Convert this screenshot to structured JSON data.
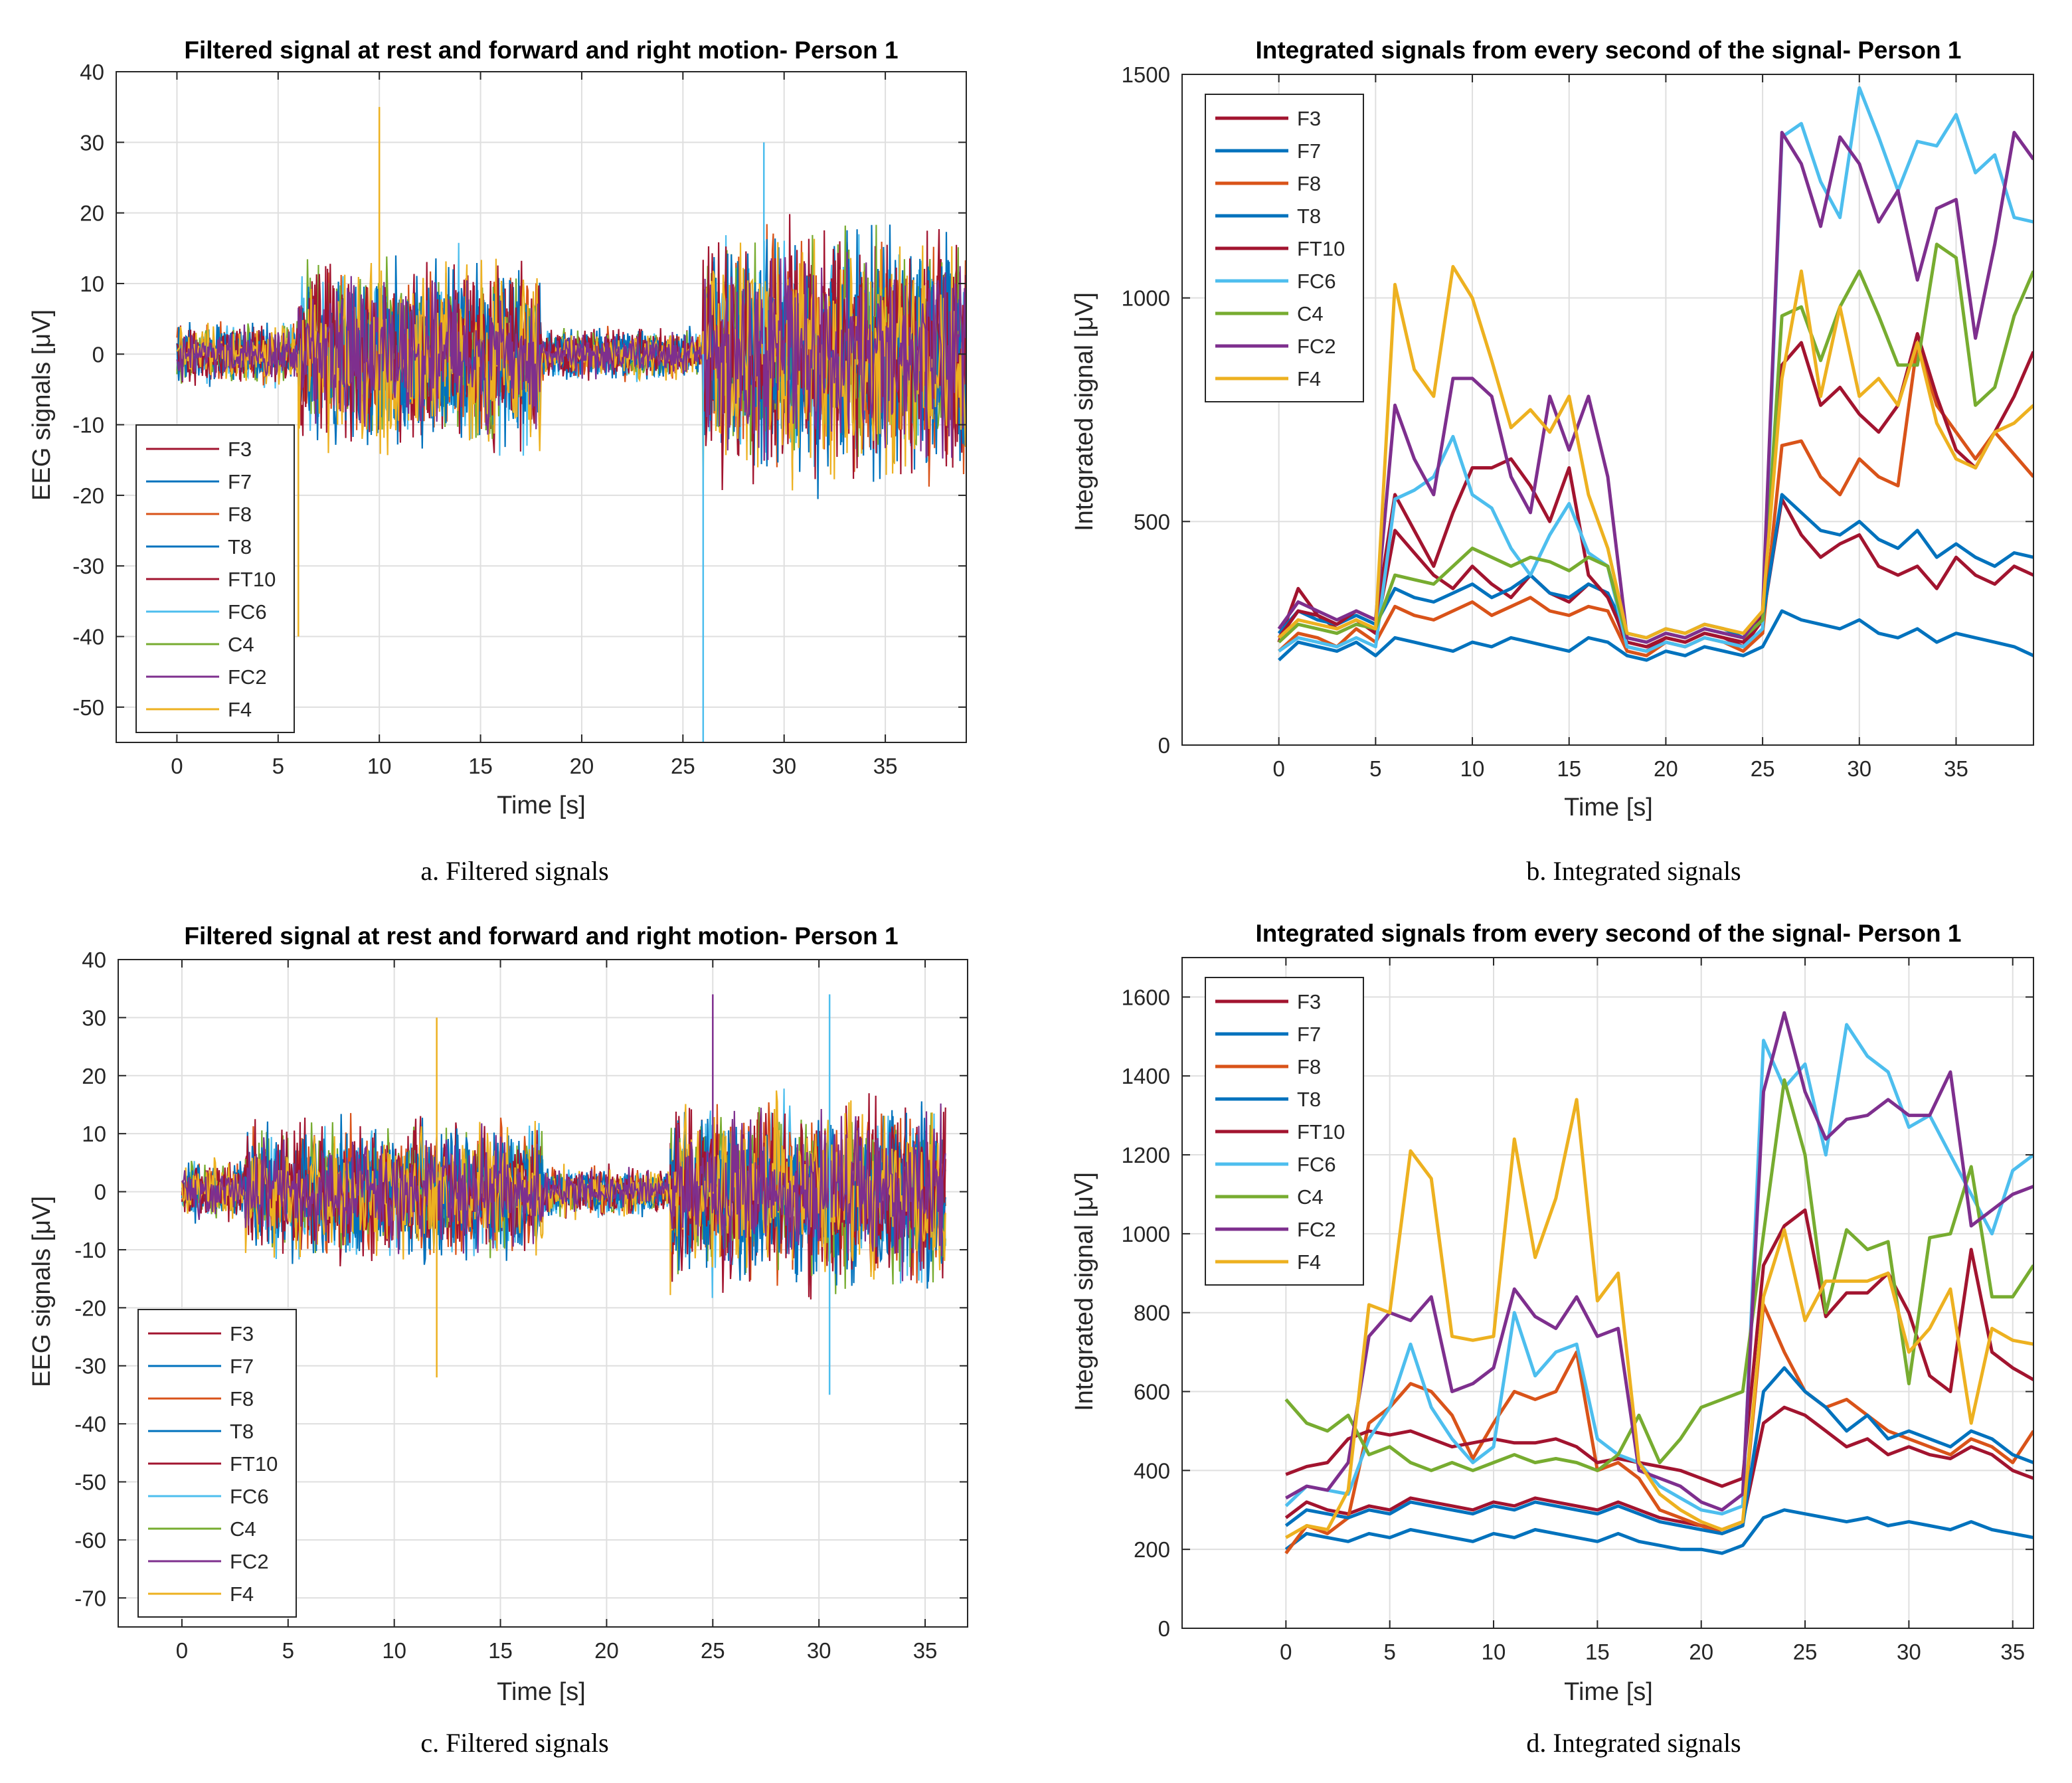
{
  "colors": {
    "F3": "#A2142F",
    "F7": "#0072BD",
    "F8": "#D95319",
    "T8": "#0072BD",
    "FT10": "#A2142F",
    "FC6": "#4DBEEE",
    "C4": "#77AC30",
    "FC2": "#7E2F8E",
    "F4": "#EDB120"
  },
  "chart_data": [
    {
      "id": "a",
      "type": "line",
      "caption": "a. Filtered signals",
      "title": "Filtered signal at rest and forward and right motion- Person 1",
      "xlabel": "Time [s]",
      "ylabel": "EEG signals [μV]",
      "xlim": [
        -3,
        39
      ],
      "ylim": [
        -55,
        40
      ],
      "xticks": [
        0,
        5,
        10,
        15,
        20,
        25,
        30,
        35
      ],
      "yticks": [
        40,
        30,
        20,
        10,
        0,
        -10,
        -20,
        -30,
        -40,
        -50
      ],
      "grid": true,
      "legend_location": "bottom-left",
      "legend": [
        "F3",
        "F7",
        "F8",
        "T8",
        "FT10",
        "FC6",
        "C4",
        "FC2",
        "F4"
      ],
      "segments": [
        {
          "x": [
            0,
            6
          ],
          "amplitude": 6
        },
        {
          "x": [
            6,
            18
          ],
          "amplitude": 18
        },
        {
          "x": [
            18,
            26
          ],
          "amplitude": 5
        },
        {
          "x": [
            26,
            39
          ],
          "amplitude": 24
        }
      ],
      "spikes": [
        {
          "x": 10,
          "y": 35,
          "series": "F4"
        },
        {
          "x": 6,
          "y": -40,
          "series": "F4"
        },
        {
          "x": 26,
          "y": -55,
          "series": "FC6"
        },
        {
          "x": 29,
          "y": 30,
          "series": "FC6"
        }
      ]
    },
    {
      "id": "b",
      "type": "line",
      "caption": "b. Integrated signals",
      "title": "Integrated signals from every second of the signal- Person 1",
      "xlabel": "Time [s]",
      "ylabel": "Integrated signal [μV]",
      "xlim": [
        -5,
        39
      ],
      "ylim": [
        0,
        1500
      ],
      "xticks": [
        0,
        5,
        10,
        15,
        20,
        25,
        30,
        35
      ],
      "yticks": [
        0,
        500,
        1000,
        1500
      ],
      "grid": true,
      "legend_location": "top-left",
      "legend": [
        "F3",
        "F7",
        "F8",
        "T8",
        "FT10",
        "FC6",
        "C4",
        "FC2",
        "F4"
      ],
      "x": [
        0,
        1,
        2,
        3,
        4,
        5,
        6,
        7,
        8,
        9,
        10,
        11,
        12,
        13,
        14,
        15,
        16,
        17,
        18,
        19,
        20,
        21,
        22,
        23,
        24,
        25,
        26,
        27,
        28,
        29,
        30,
        31,
        32,
        33,
        34,
        35,
        36,
        37,
        38,
        39
      ],
      "series": [
        {
          "name": "F3",
          "values": [
            230,
            350,
            290,
            260,
            280,
            250,
            480,
            430,
            380,
            350,
            400,
            360,
            330,
            380,
            340,
            320,
            360,
            340,
            220,
            210,
            240,
            230,
            250,
            240,
            220,
            280,
            550,
            470,
            420,
            450,
            470,
            400,
            380,
            400,
            350,
            420,
            380,
            360,
            400,
            380
          ]
        },
        {
          "name": "F7",
          "values": [
            190,
            230,
            220,
            210,
            230,
            200,
            240,
            230,
            220,
            210,
            230,
            220,
            240,
            230,
            220,
            210,
            240,
            230,
            200,
            190,
            210,
            200,
            220,
            210,
            200,
            220,
            300,
            280,
            270,
            260,
            280,
            250,
            240,
            260,
            230,
            250,
            240,
            230,
            220,
            200
          ]
        },
        {
          "name": "F8",
          "values": [
            210,
            250,
            240,
            220,
            260,
            230,
            310,
            290,
            280,
            300,
            320,
            290,
            310,
            330,
            300,
            290,
            310,
            300,
            210,
            200,
            230,
            220,
            240,
            230,
            210,
            250,
            670,
            680,
            600,
            560,
            640,
            600,
            580,
            900,
            760,
            700,
            640,
            700,
            650,
            600
          ]
        },
        {
          "name": "T8",
          "values": [
            250,
            300,
            280,
            270,
            290,
            270,
            350,
            330,
            320,
            340,
            360,
            330,
            350,
            380,
            340,
            330,
            360,
            340,
            250,
            240,
            260,
            250,
            270,
            260,
            240,
            280,
            560,
            520,
            480,
            470,
            500,
            460,
            440,
            480,
            420,
            450,
            420,
            400,
            430,
            420
          ]
        },
        {
          "name": "FT10",
          "values": [
            240,
            300,
            290,
            270,
            300,
            280,
            560,
            480,
            400,
            520,
            620,
            620,
            640,
            580,
            500,
            620,
            380,
            330,
            230,
            220,
            240,
            230,
            250,
            240,
            230,
            290,
            850,
            900,
            760,
            800,
            740,
            700,
            760,
            920,
            780,
            660,
            620,
            700,
            780,
            880
          ]
        },
        {
          "name": "FC6",
          "values": [
            210,
            240,
            230,
            220,
            240,
            220,
            550,
            570,
            600,
            690,
            560,
            530,
            440,
            380,
            470,
            540,
            430,
            400,
            220,
            210,
            230,
            220,
            240,
            230,
            220,
            260,
            1360,
            1390,
            1260,
            1180,
            1470,
            1360,
            1240,
            1350,
            1340,
            1410,
            1280,
            1320,
            1180,
            1170
          ]
        },
        {
          "name": "C4",
          "values": [
            230,
            270,
            260,
            250,
            270,
            260,
            380,
            370,
            360,
            400,
            440,
            420,
            400,
            420,
            410,
            390,
            420,
            400,
            240,
            230,
            250,
            240,
            260,
            250,
            240,
            280,
            960,
            980,
            860,
            980,
            1060,
            960,
            850,
            850,
            1120,
            1090,
            760,
            800,
            960,
            1060
          ]
        },
        {
          "name": "FC2",
          "values": [
            260,
            320,
            300,
            280,
            300,
            280,
            760,
            640,
            560,
            820,
            820,
            780,
            600,
            520,
            780,
            660,
            780,
            600,
            240,
            230,
            250,
            240,
            260,
            250,
            240,
            300,
            1370,
            1300,
            1160,
            1360,
            1300,
            1170,
            1240,
            1040,
            1200,
            1220,
            910,
            1120,
            1370,
            1310
          ]
        },
        {
          "name": "F4",
          "values": [
            240,
            280,
            270,
            260,
            280,
            260,
            1030,
            840,
            780,
            1070,
            1000,
            860,
            710,
            750,
            700,
            780,
            560,
            440,
            250,
            240,
            260,
            250,
            270,
            260,
            250,
            300,
            820,
            1060,
            780,
            980,
            780,
            820,
            760,
            900,
            720,
            640,
            620,
            700,
            720,
            760
          ]
        }
      ]
    },
    {
      "id": "c",
      "type": "line",
      "caption": "c. Filtered signals",
      "title": "Filtered signal at rest and forward and right motion- Person 1",
      "xlabel": "Time [s]",
      "ylabel": "EEG signals [μV]",
      "xlim": [
        -3,
        37
      ],
      "ylim": [
        -75,
        40
      ],
      "xticks": [
        0,
        5,
        10,
        15,
        20,
        25,
        30,
        35
      ],
      "yticks": [
        40,
        30,
        20,
        10,
        0,
        -10,
        -20,
        -30,
        -40,
        -50,
        -60,
        -70
      ],
      "grid": true,
      "legend_location": "bottom-left",
      "legend": [
        "F3",
        "F7",
        "F8",
        "T8",
        "FT10",
        "FC6",
        "C4",
        "FC2",
        "F4"
      ],
      "segments": [
        {
          "x": [
            0,
            3
          ],
          "amplitude": 7
        },
        {
          "x": [
            3,
            17
          ],
          "amplitude": 16
        },
        {
          "x": [
            17,
            23
          ],
          "amplitude": 6
        },
        {
          "x": [
            23,
            36
          ],
          "amplitude": 22
        }
      ],
      "spikes": [
        {
          "x": 12,
          "y": 30,
          "series": "F4"
        },
        {
          "x": 25,
          "y": 34,
          "series": "FC2"
        },
        {
          "x": 30.5,
          "y": 34,
          "series": "FC6"
        },
        {
          "x": 30.5,
          "y": -35,
          "series": "FC6"
        },
        {
          "x": 12,
          "y": -32,
          "series": "F4"
        }
      ]
    },
    {
      "id": "d",
      "type": "line",
      "caption": "d. Integrated signals",
      "title": "Integrated signals from every second of the signal- Person 1",
      "xlabel": "Time [s]",
      "ylabel": "Integrated signal [μV]",
      "xlim": [
        -5,
        36
      ],
      "ylim": [
        0,
        1700
      ],
      "xticks": [
        0,
        5,
        10,
        15,
        20,
        25,
        30,
        35
      ],
      "yticks": [
        0,
        200,
        400,
        600,
        800,
        1000,
        1200,
        1400,
        1600
      ],
      "grid": true,
      "legend_location": "top-left",
      "legend": [
        "F3",
        "F7",
        "F8",
        "T8",
        "FT10",
        "FC6",
        "C4",
        "FC2",
        "F4"
      ],
      "x": [
        0,
        1,
        2,
        3,
        4,
        5,
        6,
        7,
        8,
        9,
        10,
        11,
        12,
        13,
        14,
        15,
        16,
        17,
        18,
        19,
        20,
        21,
        22,
        23,
        24,
        25,
        26,
        27,
        28,
        29,
        30,
        31,
        32,
        33,
        34,
        35,
        36
      ],
      "series": [
        {
          "name": "F3",
          "values": [
            280,
            320,
            300,
            290,
            310,
            300,
            330,
            320,
            310,
            300,
            320,
            310,
            330,
            320,
            310,
            300,
            320,
            300,
            280,
            270,
            260,
            250,
            270,
            520,
            560,
            540,
            500,
            460,
            480,
            440,
            460,
            440,
            430,
            460,
            440,
            400,
            380
          ]
        },
        {
          "name": "F7",
          "values": [
            200,
            240,
            230,
            220,
            240,
            230,
            250,
            240,
            230,
            220,
            240,
            230,
            250,
            240,
            230,
            220,
            240,
            220,
            210,
            200,
            200,
            190,
            210,
            280,
            300,
            290,
            280,
            270,
            280,
            260,
            270,
            260,
            250,
            270,
            250,
            240,
            230
          ]
        },
        {
          "name": "F8",
          "values": [
            190,
            260,
            240,
            280,
            520,
            560,
            620,
            600,
            540,
            430,
            520,
            600,
            580,
            600,
            700,
            400,
            420,
            380,
            300,
            280,
            260,
            240,
            260,
            820,
            700,
            600,
            560,
            580,
            540,
            500,
            480,
            460,
            440,
            480,
            460,
            420,
            500
          ]
        },
        {
          "name": "T8",
          "values": [
            260,
            300,
            290,
            280,
            300,
            290,
            320,
            310,
            300,
            290,
            310,
            300,
            320,
            310,
            300,
            290,
            310,
            290,
            270,
            260,
            250,
            240,
            260,
            600,
            660,
            600,
            560,
            500,
            540,
            480,
            500,
            480,
            460,
            500,
            480,
            440,
            420
          ]
        },
        {
          "name": "FT10",
          "values": [
            390,
            410,
            420,
            480,
            500,
            490,
            500,
            480,
            460,
            470,
            480,
            470,
            470,
            480,
            460,
            420,
            430,
            420,
            410,
            400,
            380,
            360,
            380,
            920,
            1020,
            1060,
            790,
            850,
            850,
            900,
            800,
            640,
            600,
            960,
            700,
            660,
            630
          ]
        },
        {
          "name": "FC6",
          "values": [
            310,
            360,
            350,
            340,
            480,
            560,
            720,
            560,
            480,
            420,
            460,
            800,
            640,
            700,
            720,
            480,
            440,
            420,
            360,
            330,
            300,
            290,
            310,
            1490,
            1370,
            1430,
            1200,
            1530,
            1450,
            1410,
            1270,
            1300,
            1200,
            1100,
            1000,
            1160,
            1200
          ]
        },
        {
          "name": "C4",
          "values": [
            580,
            520,
            500,
            540,
            440,
            460,
            420,
            400,
            420,
            400,
            420,
            440,
            420,
            430,
            420,
            400,
            440,
            540,
            420,
            480,
            560,
            580,
            600,
            1000,
            1390,
            1200,
            800,
            1010,
            960,
            980,
            620,
            990,
            1000,
            1170,
            840,
            840,
            920
          ]
        },
        {
          "name": "FC2",
          "values": [
            330,
            360,
            350,
            420,
            740,
            800,
            780,
            840,
            600,
            620,
            660,
            860,
            790,
            760,
            840,
            740,
            760,
            400,
            380,
            360,
            320,
            300,
            340,
            1360,
            1560,
            1360,
            1240,
            1290,
            1300,
            1340,
            1300,
            1300,
            1410,
            1020,
            1060,
            1100,
            1120
          ]
        },
        {
          "name": "F4",
          "values": [
            230,
            260,
            250,
            350,
            820,
            800,
            1210,
            1140,
            740,
            730,
            740,
            1240,
            940,
            1090,
            1340,
            830,
            900,
            420,
            340,
            300,
            270,
            250,
            270,
            840,
            1010,
            780,
            880,
            880,
            880,
            900,
            700,
            760,
            860,
            520,
            760,
            730,
            720
          ]
        }
      ]
    }
  ]
}
